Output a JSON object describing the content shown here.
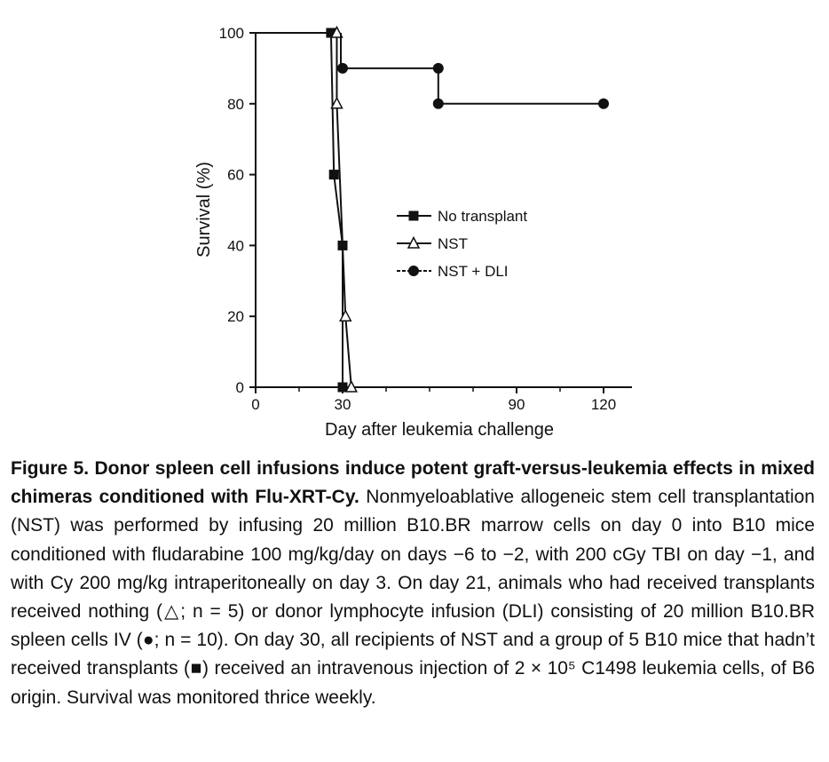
{
  "chart_data": {
    "type": "line",
    "step": true,
    "xlabel": "Day after leukemia challenge",
    "ylabel": "Survival (%)",
    "xlim": [
      0,
      130
    ],
    "ylim": [
      0,
      100
    ],
    "xticks": [
      0,
      30,
      90,
      120
    ],
    "xtick_labels": [
      "0",
      "30",
      "90",
      "120"
    ],
    "yticks": [
      0,
      20,
      40,
      60,
      80,
      100
    ],
    "ytick_labels": [
      "0",
      "20",
      "40",
      "60",
      "80",
      "100"
    ],
    "grid": false,
    "legend_position": "center-right",
    "series": [
      {
        "name": "No transplant",
        "marker": "filled-square",
        "color": "#111111",
        "points": [
          [
            26,
            100
          ],
          [
            27,
            60
          ],
          [
            30,
            40
          ],
          [
            30,
            0
          ]
        ]
      },
      {
        "name": "NST",
        "marker": "open-triangle",
        "color": "#111111",
        "points": [
          [
            28,
            100
          ],
          [
            28,
            80
          ],
          [
            31,
            20
          ],
          [
            33,
            0
          ]
        ]
      },
      {
        "name": "NST + DLI",
        "marker": "filled-circle",
        "color": "#111111",
        "points": [
          [
            30,
            90
          ],
          [
            63,
            90
          ],
          [
            63,
            80
          ],
          [
            120,
            80
          ]
        ]
      }
    ]
  },
  "caption": {
    "title": "Figure 5. Donor spleen cell infusions induce potent graft-versus-leukemia effects in mixed chimeras conditioned with Flu-XRT-Cy.",
    "body": "Nonmyeloablative allogeneic stem cell transplantation (NST) was performed by infusing 20 million B10.BR marrow cells on day 0 into B10 mice conditioned with fludarabine 100 mg/kg/day on days −6 to −2, with 200 cGy TBI on day −1, and with Cy 200 mg/kg intraperitoneally on day 3. On day 21, animals who had received transplants received nothing (△; n = 5) or donor lymphocyte infusion (DLI) consisting of 20 million B10.BR spleen cells IV (●; n = 10). On day 30, all recipients of NST and a group of 5 B10 mice that hadn’t received transplants (■) received an intravenous injection of 2 × 10⁵ C1498 leukemia cells, of B6 origin. Survival was monitored thrice weekly."
  }
}
